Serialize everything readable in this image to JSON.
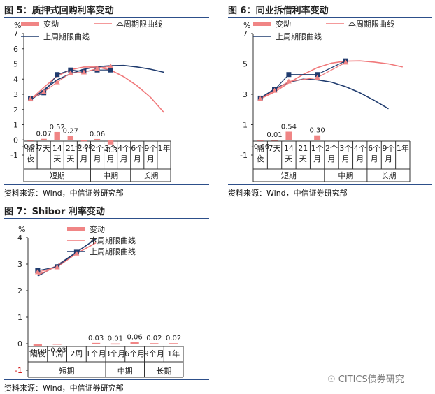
{
  "figures": [
    {
      "title": "图 5：质押式回购利率变动",
      "source": "资料来源：Wind，中信证券研究部"
    },
    {
      "title": "图 6：同业拆借利率变动",
      "source": "资料来源：Wind，中信证券研究部"
    },
    {
      "title": "图 7：Shibor 利率变动",
      "source": "资料来源：Wind，中信证券研究部"
    }
  ],
  "watermark": "CITICS债券研究",
  "chart_data": [
    {
      "type": "bar",
      "unit": "%",
      "ylim": [
        -1,
        7
      ],
      "yticks": [
        -1,
        0,
        1,
        2,
        3,
        4,
        5,
        6,
        7
      ],
      "categories": [
        "隔夜",
        "7天",
        "14天",
        "21天",
        "1个月",
        "2个月",
        "3个月",
        "4个月",
        "6个月",
        "9个月",
        "1年"
      ],
      "category_labels": [
        [
          "隔",
          "夜"
        ],
        [
          "7天"
        ],
        [
          "14",
          "天"
        ],
        [
          "21",
          "天"
        ],
        [
          "1个",
          "月"
        ],
        [
          "2个",
          "月"
        ],
        [
          "3个",
          "月"
        ],
        [
          "4个",
          "月"
        ],
        [
          "6个",
          "月"
        ],
        [
          "9个",
          "月"
        ],
        [
          "1年"
        ]
      ],
      "groups": [
        {
          "label": "短期",
          "span": [
            0,
            4
          ]
        },
        {
          "label": "中期",
          "span": [
            5,
            7
          ]
        },
        {
          "label": "长期",
          "span": [
            8,
            10
          ]
        }
      ],
      "legend": [
        "变动",
        "本周期限曲线",
        "上周期限曲线"
      ],
      "colors": {
        "bar": "#f08585",
        "this_week": "#f0787a",
        "last_week": "#1f3b6e",
        "marker_last": "#1f3b6e",
        "marker_this": "#f08585"
      },
      "bars": [
        {
          "i": 0,
          "value": -0.01,
          "label": "-0.01"
        },
        {
          "i": 1,
          "value": 0.07,
          "label": "0.07"
        },
        {
          "i": 2,
          "value": 0.52,
          "label": "0.52"
        },
        {
          "i": 3,
          "value": 0.27,
          "label": "0.27"
        },
        {
          "i": 4,
          "value": -0.09,
          "label": "-0.09"
        },
        {
          "i": 5,
          "value": 0.06,
          "label": "0.06"
        },
        {
          "i": 6,
          "value": -0.3,
          "label": "-0.3"
        }
      ],
      "last_week_points": [
        [
          0,
          2.7
        ],
        [
          1,
          3.1
        ],
        [
          2,
          4.3
        ],
        [
          3,
          4.6
        ],
        [
          4,
          4.5
        ],
        [
          5,
          4.6
        ],
        [
          6,
          4.6
        ]
      ],
      "this_week_points": [
        [
          0,
          2.7
        ],
        [
          1,
          3.15
        ],
        [
          2,
          3.8
        ],
        [
          3,
          4.4
        ],
        [
          4,
          4.45
        ],
        [
          5,
          4.7
        ],
        [
          6,
          4.85
        ]
      ],
      "last_week_curve": [
        [
          0,
          2.6
        ],
        [
          1,
          3.3
        ],
        [
          2,
          3.95
        ],
        [
          3,
          4.35
        ],
        [
          4,
          4.65
        ],
        [
          5,
          4.82
        ],
        [
          6,
          4.88
        ],
        [
          7,
          4.9
        ],
        [
          8,
          4.8
        ],
        [
          9,
          4.65
        ],
        [
          10,
          4.45
        ]
      ],
      "this_week_curve": [
        [
          0,
          2.65
        ],
        [
          1,
          3.45
        ],
        [
          2,
          4.2
        ],
        [
          3,
          4.62
        ],
        [
          4,
          4.8
        ],
        [
          5,
          4.8
        ],
        [
          6,
          4.6
        ],
        [
          7,
          4.15
        ],
        [
          8,
          3.55
        ],
        [
          9,
          2.8
        ],
        [
          10,
          1.8
        ]
      ]
    },
    {
      "type": "bar",
      "unit": "%",
      "ylim": [
        -1,
        7
      ],
      "yticks": [
        -1,
        1,
        3,
        5,
        7
      ],
      "categories": [
        "隔夜",
        "7天",
        "14天",
        "21天",
        "1个月",
        "2个月",
        "3个月",
        "4个月",
        "6个月",
        "9个月",
        "1年"
      ],
      "category_labels": [
        [
          "隔",
          "夜"
        ],
        [
          "7天"
        ],
        [
          "14",
          "天"
        ],
        [
          "21",
          "天"
        ],
        [
          "1个",
          "月"
        ],
        [
          "2个",
          "月"
        ],
        [
          "3个",
          "月"
        ],
        [
          "4个",
          "月"
        ],
        [
          "6个",
          "月"
        ],
        [
          "9个",
          "月"
        ],
        [
          "1年"
        ]
      ],
      "groups": [
        {
          "label": "短期",
          "span": [
            0,
            4
          ]
        },
        {
          "label": "中期",
          "span": [
            5,
            7
          ]
        },
        {
          "label": "长期",
          "span": [
            8,
            10
          ]
        }
      ],
      "legend": [
        "变动",
        "本周期限曲线",
        "上周期限曲线"
      ],
      "colors": {
        "bar": "#f08585",
        "this_week": "#f0787a",
        "last_week": "#1f3b6e",
        "marker_last": "#1f3b6e",
        "marker_this": "#f08585"
      },
      "bars": [
        {
          "i": 0,
          "value": -0.06,
          "label": "-0.06"
        },
        {
          "i": 1,
          "value": 0.01,
          "label": "0.01"
        },
        {
          "i": 2,
          "value": 0.54,
          "label": "0.54"
        },
        {
          "i": 4,
          "value": 0.3,
          "label": "0.30"
        }
      ],
      "last_week_points": [
        [
          0,
          2.75
        ],
        [
          1,
          3.3
        ],
        [
          2,
          4.3
        ],
        [
          4,
          4.3
        ],
        [
          6,
          5.2
        ]
      ],
      "this_week_points": [
        [
          0,
          2.7
        ],
        [
          1,
          3.25
        ],
        [
          2,
          3.85
        ],
        [
          4,
          4.1
        ],
        [
          6,
          5.1
        ]
      ],
      "last_week_curve": [
        [
          0,
          2.75
        ],
        [
          1,
          3.35
        ],
        [
          2,
          3.8
        ],
        [
          3,
          4.0
        ],
        [
          4,
          3.95
        ],
        [
          5,
          3.8
        ],
        [
          6,
          3.5
        ],
        [
          7,
          3.1
        ],
        [
          8,
          2.6
        ],
        [
          9,
          2.05
        ]
      ],
      "this_week_curve": [
        [
          0,
          2.7
        ],
        [
          1,
          3.15
        ],
        [
          2,
          3.75
        ],
        [
          3,
          4.3
        ],
        [
          4,
          4.75
        ],
        [
          5,
          5.05
        ],
        [
          6,
          5.18
        ],
        [
          7,
          5.2
        ],
        [
          8,
          5.12
        ],
        [
          9,
          5.0
        ],
        [
          10,
          4.8
        ]
      ]
    },
    {
      "type": "bar",
      "unit": "%",
      "ylim": [
        -1,
        4
      ],
      "yticks": [
        -1,
        0,
        1,
        2,
        3,
        4
      ],
      "categories": [
        "隔夜",
        "1周",
        "2周",
        "1个月",
        "3个月",
        "6个月",
        "9个月",
        "1年"
      ],
      "category_labels": [
        [
          "隔夜"
        ],
        [
          "1周"
        ],
        [
          "2周"
        ],
        [
          "1个月"
        ],
        [
          "3个月"
        ],
        [
          "6个月"
        ],
        [
          "9个月"
        ],
        [
          "1年"
        ]
      ],
      "groups": [
        {
          "label": "短期",
          "span": [
            0,
            3
          ]
        },
        {
          "label": "中期",
          "span": [
            4,
            5
          ]
        },
        {
          "label": "长期",
          "span": [
            6,
            7
          ]
        }
      ],
      "legend": [
        "变动",
        "本周期限曲线",
        "上周期限曲线"
      ],
      "colors": {
        "bar": "#f08585",
        "this_week": "#f0787a",
        "last_week": "#1f3b6e",
        "marker_last": "#1f3b6e",
        "marker_this": "#f08585"
      },
      "bars": [
        {
          "i": 0,
          "value": -0.08,
          "label": "-0.08"
        },
        {
          "i": 1,
          "value": -0.03,
          "label": "-0.03"
        },
        {
          "i": 3,
          "value": 0.03,
          "label": "0.03"
        },
        {
          "i": 4,
          "value": 0.01,
          "label": "0.01"
        },
        {
          "i": 5,
          "value": 0.06,
          "label": "0.06"
        },
        {
          "i": 6,
          "value": 0.02,
          "label": "0.02"
        },
        {
          "i": 7,
          "value": 0.02,
          "label": "0.02"
        }
      ],
      "last_week_points": [
        [
          0,
          2.75
        ],
        [
          1,
          2.9
        ],
        [
          2,
          3.45
        ]
      ],
      "this_week_points": [
        [
          0,
          2.7
        ],
        [
          1,
          2.88
        ],
        [
          2,
          3.4
        ]
      ],
      "last_week_curve": [
        [
          0,
          2.55
        ],
        [
          0.5,
          2.75
        ],
        [
          1,
          2.95
        ],
        [
          1.5,
          3.2
        ],
        [
          2,
          3.45
        ],
        [
          2.5,
          3.7
        ],
        [
          3,
          3.95
        ]
      ],
      "this_week_curve": [
        [
          0,
          2.6
        ],
        [
          0.5,
          2.75
        ],
        [
          1,
          2.95
        ],
        [
          1.5,
          3.15
        ],
        [
          2,
          3.4
        ],
        [
          2.5,
          3.6
        ],
        [
          3,
          3.8
        ]
      ]
    }
  ]
}
